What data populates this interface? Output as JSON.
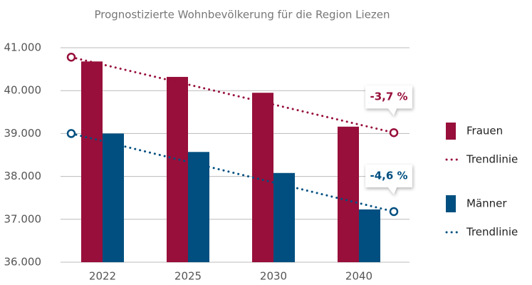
{
  "chart_data": {
    "type": "bar",
    "title": "Prognostizierte Wohnbevölkerung für die Region Liezen",
    "categories": [
      "2022",
      "2025",
      "2030",
      "2040"
    ],
    "series": [
      {
        "name": "Frauen",
        "color": "#970f3a",
        "values": [
          40680,
          40320,
          39950,
          39160
        ],
        "trend": {
          "name": "Trendlinie",
          "values": [
            40780,
            39020
          ],
          "annotation": "-3,7 %"
        }
      },
      {
        "name": "Männer",
        "color": "#004f80",
        "values": [
          39000,
          38570,
          38080,
          37230
        ],
        "trend": {
          "name": "Trendlinie",
          "values": [
            39000,
            37180
          ],
          "annotation": "-4,6 %"
        }
      }
    ],
    "ylim": [
      36000,
      41000
    ],
    "yticks": [
      {
        "value": 36000,
        "label": "36.000"
      },
      {
        "value": 37000,
        "label": "37.000"
      },
      {
        "value": 38000,
        "label": "38.000"
      },
      {
        "value": 39000,
        "label": "39.000"
      },
      {
        "value": 40000,
        "label": "40.000"
      },
      {
        "value": 41000,
        "label": "41.000"
      }
    ],
    "grid": true
  }
}
